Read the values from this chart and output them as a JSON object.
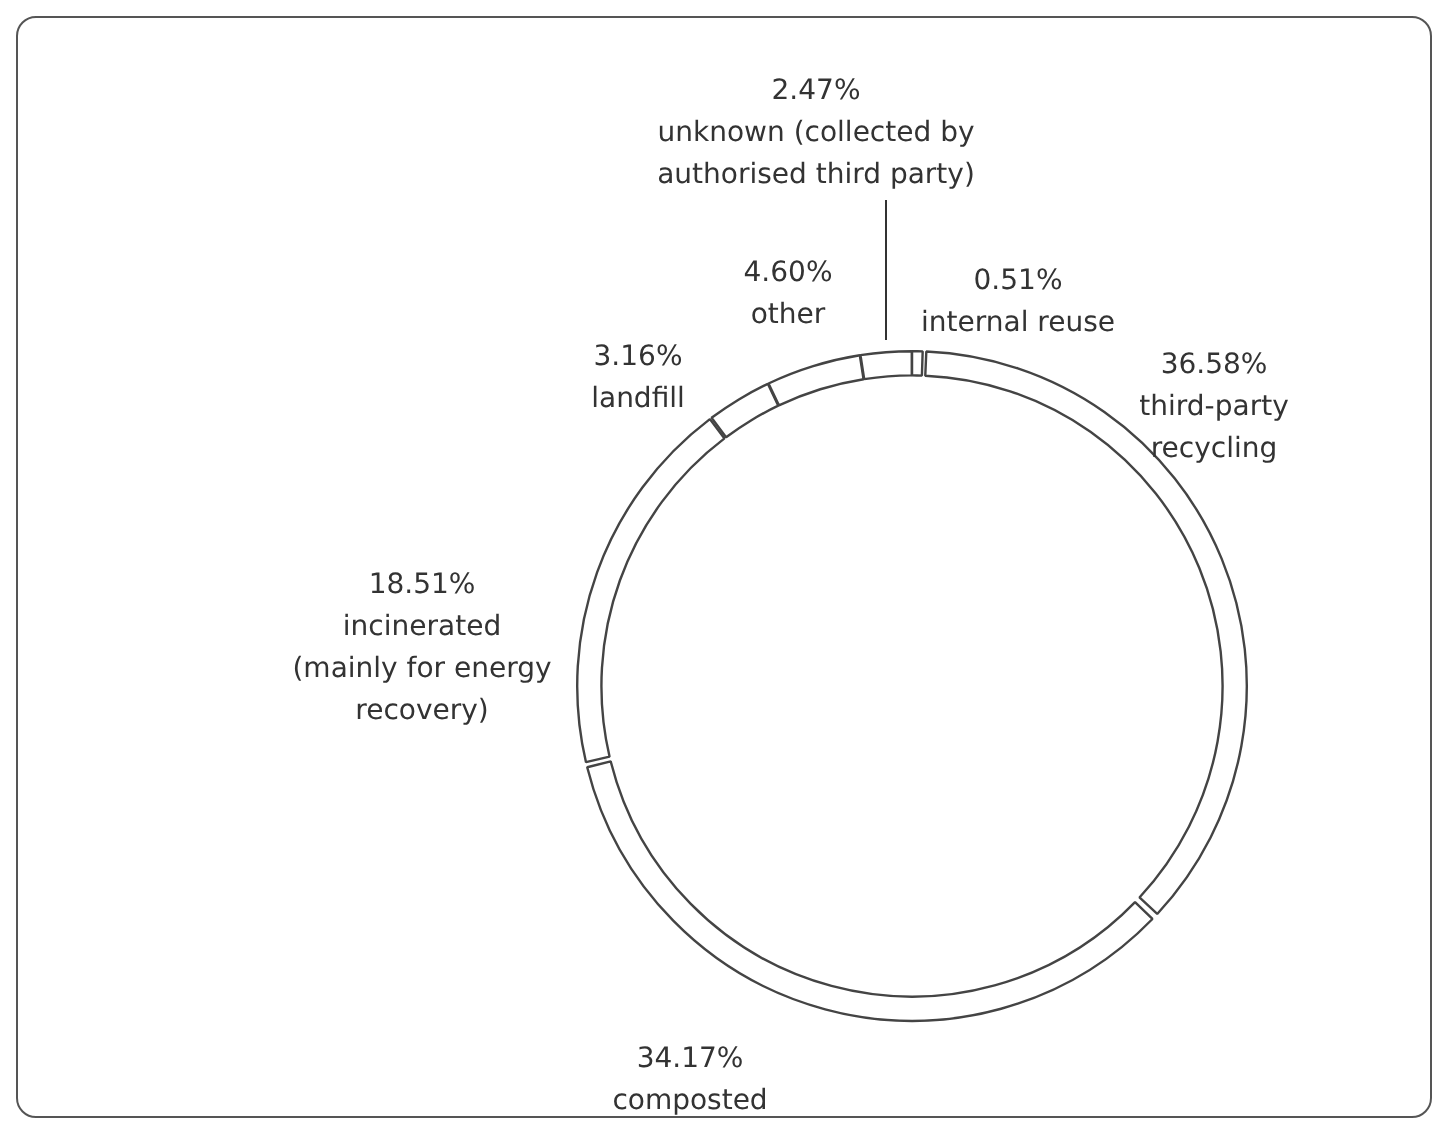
{
  "chart_data": {
    "type": "donut",
    "categories": [
      "internal reuse",
      "third-party recycling",
      "composted",
      "incinerated (mainly for energy recovery)",
      "landfill",
      "other",
      "unknown (collected by authorised third party)"
    ],
    "values": [
      0.51,
      36.58,
      34.17,
      18.51,
      3.16,
      4.6,
      2.47
    ],
    "value_labels": [
      "0.51%",
      "36.58%",
      "34.17%",
      "18.51%",
      "3.16%",
      "4.60%",
      "2.47%"
    ],
    "colors": [
      "#ffffff",
      "#ffffff",
      "#ffffff",
      "#ffffff",
      "#ffffff",
      "#ffffff",
      "#ffffff"
    ],
    "legend": false
  }
}
